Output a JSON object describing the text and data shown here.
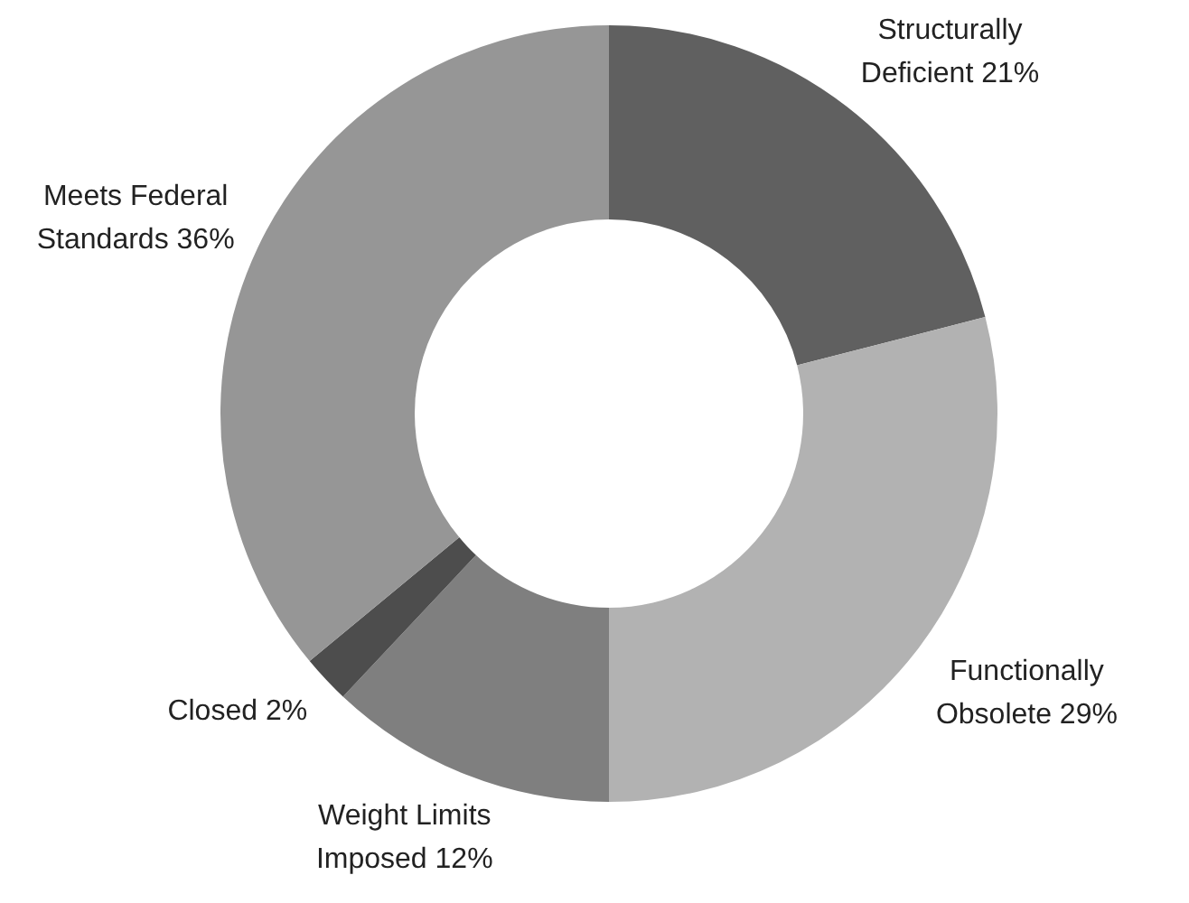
{
  "chart_data": {
    "type": "donut",
    "categories": [
      "Structurally Deficient",
      "Functionally Obsolete",
      "Weight Limits Imposed",
      "Closed",
      "Meets Federal Standards"
    ],
    "values": [
      21,
      29,
      12,
      2,
      36
    ],
    "value_labels": [
      "21%",
      "29%",
      "12%",
      "2%",
      "36%"
    ],
    "colors": [
      "#606060",
      "#b2b2b2",
      "#7f7f7f",
      "#4d4d4d",
      "#969696"
    ]
  }
}
